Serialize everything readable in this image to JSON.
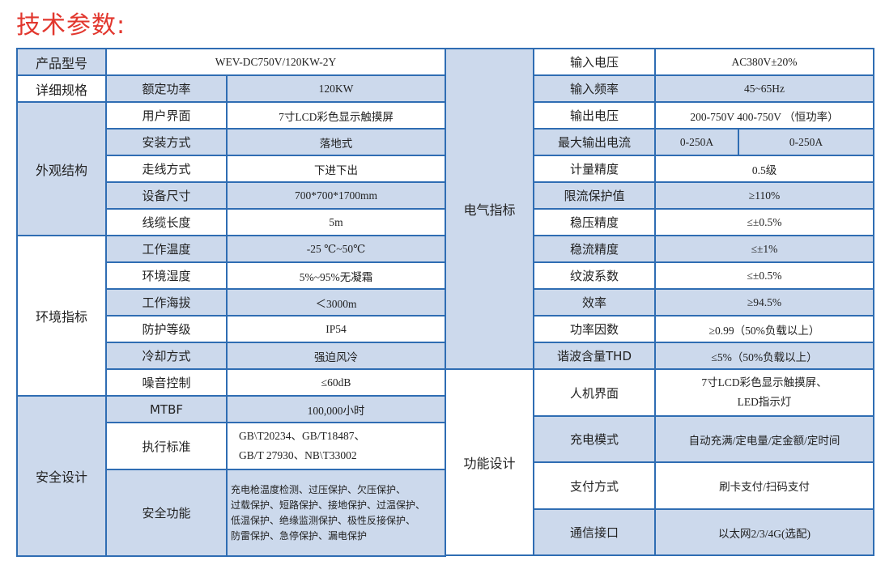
{
  "title": "技术参数:",
  "left": {
    "product_model": {
      "label": "产品型号",
      "value": "WEV-DC750V/120KW-2Y"
    },
    "groups": [
      {
        "label": "详细规格",
        "rows": [
          {
            "label": "额定功率",
            "value": "120KW"
          }
        ]
      },
      {
        "label": "外观结构",
        "rows": [
          {
            "label": "用户界面",
            "value": "7寸LCD彩色显示触摸屏"
          },
          {
            "label": "安装方式",
            "value": "落地式"
          },
          {
            "label": "走线方式",
            "value": "下进下出"
          },
          {
            "label": "设备尺寸",
            "value": "700*700*1700mm"
          },
          {
            "label": "线缆长度",
            "value": "5m"
          }
        ]
      },
      {
        "label": "环境指标",
        "rows": [
          {
            "label": "工作温度",
            "value": "-25 ℃~50℃"
          },
          {
            "label": "环境湿度",
            "value": "5%~95%无凝霜"
          },
          {
            "label": "工作海拔",
            "value": "＜3000m"
          },
          {
            "label": "防护等级",
            "value": "IP54"
          },
          {
            "label": "冷却方式",
            "value": "强迫风冷"
          },
          {
            "label": "噪音控制",
            "value": "≤60dB"
          }
        ]
      },
      {
        "label": "安全设计",
        "rows": [
          {
            "label": "MTBF",
            "value": "100,000小时"
          },
          {
            "label": "执行标准",
            "value_lines": [
              "GB\\T20234、GB/T18487、",
              "GB/T 27930、NB\\T33002"
            ]
          },
          {
            "label": "安全功能",
            "value_lines": [
              "充电枪温度检测、过压保护、欠压保护、",
              "过载保护、短路保护、接地保护、过温保护、",
              "低温保护、绝缘监测保护、极性反接保护、",
              "防雷保护、急停保护、漏电保护"
            ]
          }
        ]
      }
    ]
  },
  "right": {
    "groups": [
      {
        "label": "电气指标",
        "rows": [
          {
            "label": "输入电压",
            "value": "AC380V±20%"
          },
          {
            "label": "输入频率",
            "value": "45~65Hz"
          },
          {
            "label": "输出电压",
            "value": "200-750V  400-750V  （恒功率）"
          },
          {
            "label": "最大输出电流",
            "values": [
              "0-250A",
              "0-250A"
            ]
          },
          {
            "label": "计量精度",
            "value": "0.5级"
          },
          {
            "label": "限流保护值",
            "value": "≥110%"
          },
          {
            "label": "稳压精度",
            "value": "≤±0.5%"
          },
          {
            "label": "稳流精度",
            "value": "≤±1%"
          },
          {
            "label": "纹波系数",
            "value": "≤±0.5%"
          },
          {
            "label": "效率",
            "value": "≥94.5%"
          },
          {
            "label": "功率因数",
            "value": "≥0.99（50%负载以上）"
          },
          {
            "label": "谐波含量THD",
            "value": "≤5%（50%负载以上）"
          }
        ]
      },
      {
        "label": "功能设计",
        "rows": [
          {
            "label": "人机界面",
            "value_lines": [
              "7寸LCD彩色显示触摸屏、",
              "LED指示灯"
            ]
          },
          {
            "label": "充电模式",
            "value": "自动充满/定电量/定金额/定时间"
          },
          {
            "label": "支付方式",
            "value": "刷卡支付/扫码支付"
          },
          {
            "label": "通信接口",
            "value": "以太网2/3/4G(选配)"
          }
        ]
      }
    ]
  },
  "colors": {
    "accent_title": "#e2372e",
    "border": "#2f6db3",
    "cell_fill": "#ccd9ec"
  }
}
